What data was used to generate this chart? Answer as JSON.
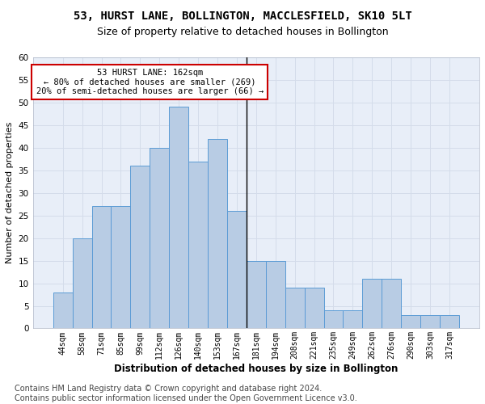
{
  "title": "53, HURST LANE, BOLLINGTON, MACCLESFIELD, SK10 5LT",
  "subtitle": "Size of property relative to detached houses in Bollington",
  "xlabel": "Distribution of detached houses by size in Bollington",
  "ylabel": "Number of detached properties",
  "categories": [
    "44sqm",
    "58sqm",
    "71sqm",
    "85sqm",
    "99sqm",
    "112sqm",
    "126sqm",
    "140sqm",
    "153sqm",
    "167sqm",
    "181sqm",
    "194sqm",
    "208sqm",
    "221sqm",
    "235sqm",
    "249sqm",
    "262sqm",
    "276sqm",
    "290sqm",
    "303sqm",
    "317sqm"
  ],
  "bar_data": [
    8,
    20,
    27,
    27,
    36,
    40,
    49,
    37,
    42,
    26,
    15,
    15,
    9,
    9,
    4,
    4,
    11,
    11,
    3,
    3,
    3
  ],
  "bar_color": "#b8cce4",
  "bar_edge_color": "#5b9bd5",
  "vline_x": 9.5,
  "vline_color": "#000000",
  "annotation_text": "53 HURST LANE: 162sqm\n← 80% of detached houses are smaller (269)\n20% of semi-detached houses are larger (66) →",
  "annotation_box_color": "#cc0000",
  "annotation_bg_color": "#ffffff",
  "ylim": [
    0,
    60
  ],
  "yticks": [
    0,
    5,
    10,
    15,
    20,
    25,
    30,
    35,
    40,
    45,
    50,
    55,
    60
  ],
  "grid_color": "#d4dcea",
  "background_color": "#e8eef8",
  "title_fontsize": 10,
  "subtitle_fontsize": 9,
  "ylabel_fontsize": 8,
  "xlabel_fontsize": 8.5,
  "footer_text": "Contains HM Land Registry data © Crown copyright and database right 2024.\nContains public sector information licensed under the Open Government Licence v3.0.",
  "footer_fontsize": 7
}
